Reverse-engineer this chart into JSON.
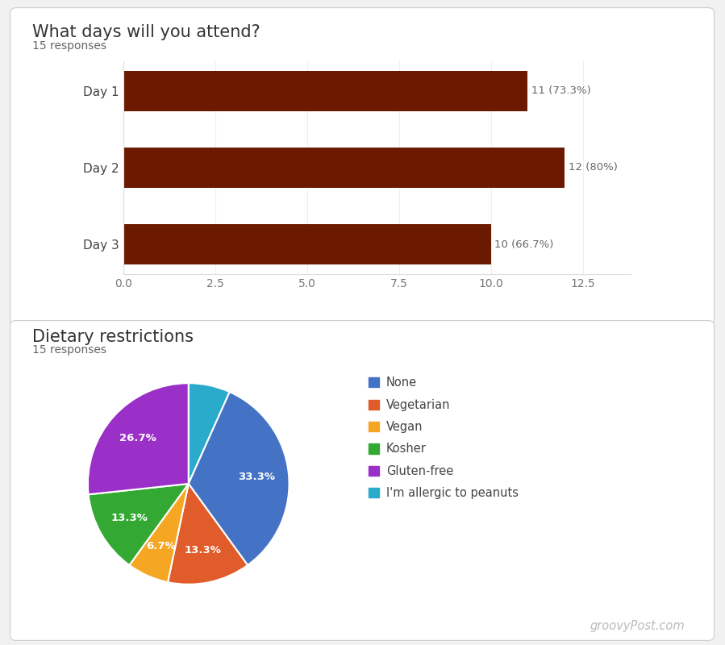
{
  "bar_title": "What days will you attend?",
  "bar_responses": "15 responses",
  "bar_categories": [
    "Day 3",
    "Day 2",
    "Day 1"
  ],
  "bar_values": [
    10,
    12,
    11
  ],
  "bar_labels": [
    "10 (66.7%)",
    "12 (80%)",
    "11 (73.3%)"
  ],
  "bar_color": "#6B1A00",
  "bar_xlim": [
    0,
    13.8
  ],
  "bar_xticks": [
    0.0,
    2.5,
    5.0,
    7.5,
    10.0,
    12.5
  ],
  "bar_xtick_labels": [
    "0.0",
    "2.5",
    "5.0",
    "7.5",
    "10.0",
    "12.5"
  ],
  "pie_title": "Dietary restrictions",
  "pie_responses": "15 responses",
  "pie_labels": [
    "None",
    "Vegetarian",
    "Vegan",
    "Kosher",
    "Gluten-free",
    "I'm allergic to peanuts"
  ],
  "pie_values": [
    33.3,
    13.3,
    6.7,
    13.3,
    26.7,
    6.7
  ],
  "pie_colors": [
    "#4472C4",
    "#E05C2A",
    "#F5A623",
    "#33A833",
    "#9B30C8",
    "#2AABCB"
  ],
  "pie_pct_labels": [
    "33.3%",
    "13.3%",
    "6.7%",
    "13.3%",
    "26.7%",
    ""
  ],
  "pie_startangle": 72,
  "background_color": "#f1f1f1",
  "card_color": "#ffffff",
  "title_color": "#333333",
  "subtitle_color": "#666666",
  "watermark": "groovyPost.com"
}
